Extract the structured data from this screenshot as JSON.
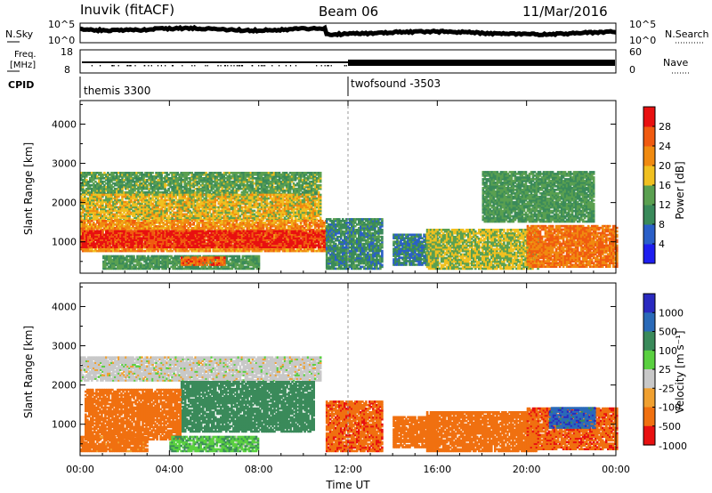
{
  "header": {
    "station": "Inuvik (fitACF)",
    "beam": "Beam 06",
    "date": "11/Mar/2016"
  },
  "noise_panel": {
    "left_label": "N.Sky",
    "right_label": "N.Search",
    "left_ticks": [
      "10^5",
      "10^0"
    ],
    "right_ticks": [
      "10^5",
      "10^0"
    ]
  },
  "freq_panel": {
    "left_label_1": "Freq.",
    "left_label_2": "[MHz]",
    "right_label": "Nave",
    "left_ticks": [
      "18",
      "8"
    ],
    "right_ticks": [
      "60",
      "0"
    ]
  },
  "cpid": {
    "label": "CPID",
    "modes": [
      {
        "name": "themis 3300",
        "start": "00:00",
        "end": "12:00"
      },
      {
        "name": "twofsound -3503",
        "start": "12:00",
        "end": "24:00"
      }
    ]
  },
  "colors": {
    "power": [
      "#1e1ef0",
      "#2a5fc8",
      "#3a8a5a",
      "#5aa050",
      "#f0c020",
      "#f08a10",
      "#f05a10",
      "#e81010"
    ],
    "velocity": [
      "#2a2ac0",
      "#2a6ab8",
      "#3a8a5a",
      "#5ad040",
      "#c8c8c8",
      "#f0a030",
      "#f07010",
      "#e81010"
    ]
  },
  "chart_data": [
    {
      "type": "heatmap",
      "name": "power",
      "xlabel": "",
      "ylabel": "Slant Range [km]",
      "x_ticks": [
        "00:00",
        "04:00",
        "08:00",
        "12:00",
        "16:00",
        "20:00",
        "00:00"
      ],
      "xlim_hours": [
        0,
        24
      ],
      "ylim_km": [
        200,
        4600
      ],
      "y_ticks": [
        1000,
        2000,
        3000,
        4000
      ],
      "colorbar": {
        "label": "Power [dB]",
        "ticks": [
          "4",
          "8",
          "12",
          "16",
          "20",
          "24",
          "28"
        ],
        "range": [
          0,
          32
        ]
      },
      "echo_regions": [
        {
          "t0": 0.0,
          "t1": 10.8,
          "r0": 2200,
          "r1": 2750,
          "value": 13
        },
        {
          "t0": 0.0,
          "t1": 10.8,
          "r0": 1550,
          "r1": 2200,
          "value": 18
        },
        {
          "t0": 0.0,
          "t1": 11.0,
          "r0": 750,
          "r1": 1550,
          "value": 22
        },
        {
          "t0": 0.0,
          "t1": 11.0,
          "r0": 850,
          "r1": 1300,
          "value": 29
        },
        {
          "t0": 1.0,
          "t1": 8.0,
          "r0": 300,
          "r1": 650,
          "value": 12
        },
        {
          "t0": 4.5,
          "t1": 6.5,
          "r0": 400,
          "r1": 600,
          "value": 25
        },
        {
          "t0": 11.0,
          "t1": 13.5,
          "r0": 300,
          "r1": 1600,
          "value": 10
        },
        {
          "t0": 14.0,
          "t1": 16.0,
          "r0": 400,
          "r1": 1200,
          "value": 9
        },
        {
          "t0": 15.5,
          "t1": 20.5,
          "r0": 300,
          "r1": 1300,
          "value": 16
        },
        {
          "t0": 20.0,
          "t1": 24.0,
          "r0": 350,
          "r1": 1400,
          "value": 24
        },
        {
          "t0": 18.0,
          "t1": 23.0,
          "r0": 1500,
          "r1": 2800,
          "value": 12
        }
      ]
    },
    {
      "type": "heatmap",
      "name": "velocity",
      "xlabel": "Time UT",
      "ylabel": "Slant Range [km]",
      "x_ticks": [
        "00:00",
        "04:00",
        "08:00",
        "12:00",
        "16:00",
        "20:00",
        "00:00"
      ],
      "xlim_hours": [
        0,
        24
      ],
      "ylim_km": [
        200,
        4600
      ],
      "y_ticks": [
        1000,
        2000,
        3000,
        4000
      ],
      "colorbar": {
        "label": "Velocity [m s⁻¹]",
        "ticks": [
          "1000",
          "500",
          "100",
          "25",
          "-25",
          "-100",
          "-500",
          "-1000"
        ]
      },
      "echo_regions": [
        {
          "t0": 0.0,
          "t1": 10.8,
          "r0": 2100,
          "r1": 2700,
          "value": 0
        },
        {
          "t0": 4.5,
          "t1": 10.5,
          "r0": 800,
          "r1": 2100,
          "value": 300
        },
        {
          "t0": 0.2,
          "t1": 4.5,
          "r0": 600,
          "r1": 1900,
          "value": -300
        },
        {
          "t0": 0.0,
          "t1": 3.0,
          "r0": 300,
          "r1": 700,
          "value": -200
        },
        {
          "t0": 4.0,
          "t1": 8.0,
          "r0": 300,
          "r1": 700,
          "value": 80
        },
        {
          "t0": 11.0,
          "t1": 13.5,
          "r0": 300,
          "r1": 1600,
          "value": -400
        },
        {
          "t0": 14.0,
          "t1": 16.0,
          "r0": 400,
          "r1": 1200,
          "value": -300
        },
        {
          "t0": 15.5,
          "t1": 20.5,
          "r0": 300,
          "r1": 1300,
          "value": -250
        },
        {
          "t0": 20.0,
          "t1": 24.0,
          "r0": 350,
          "r1": 1400,
          "value": -400
        },
        {
          "t0": 21.0,
          "t1": 23.0,
          "r0": 900,
          "r1": 1400,
          "value": 800
        }
      ]
    }
  ]
}
